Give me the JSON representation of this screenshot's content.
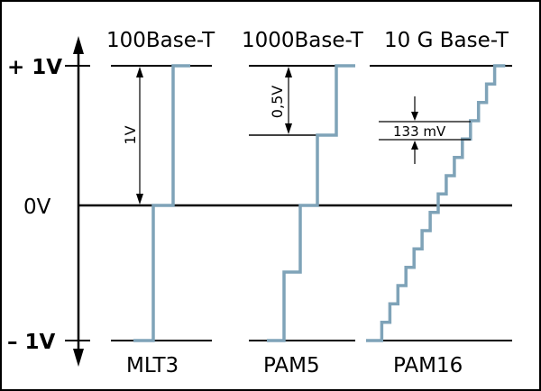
{
  "colors": {
    "frame": "#000000",
    "rails": "#000000",
    "signal": "#7FA3B8",
    "text": "#000000",
    "background": "#ffffff"
  },
  "voltage_labels": {
    "top": "+ 1V",
    "zero": "0V",
    "bottom": "– 1V"
  },
  "panels": [
    {
      "title": "100Base-T",
      "code": "MLT3",
      "levels": 3,
      "annotation": "1V"
    },
    {
      "title": "1000Base-T",
      "code": "PAM5",
      "levels": 5,
      "annotation": "0,5V"
    },
    {
      "title": "10 G Base-T",
      "code": "PAM16",
      "levels": 16,
      "annotation": "133 mV"
    }
  ]
}
